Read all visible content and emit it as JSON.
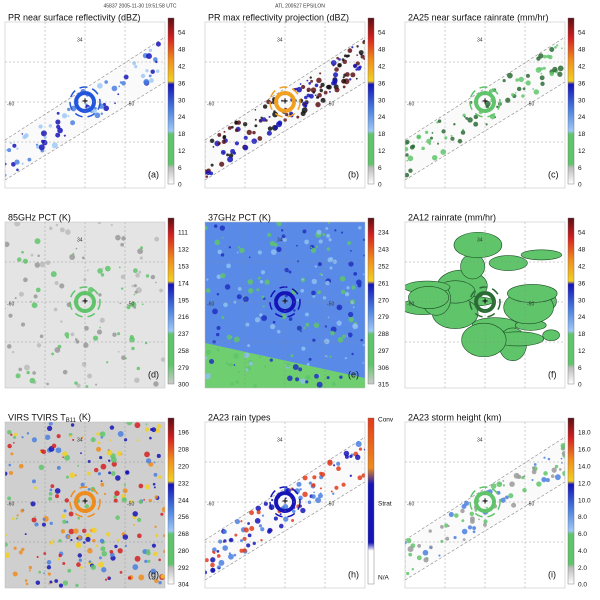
{
  "header": {
    "left": "45837 2005-11-30 19:51:58 UTC",
    "center": "ATL 200527 EPSILON"
  },
  "map_labels": [
    "34",
    "-60",
    "-50"
  ],
  "panels": [
    {
      "title": "PR near surface reflectivity (dBZ)",
      "letter": "(a)",
      "colorbar": [
        "54",
        "48",
        "42",
        "36",
        "30",
        "24",
        "18",
        "12",
        "6",
        "0"
      ]
    },
    {
      "title": "PR max reflectivity projection (dBZ)",
      "letter": "(b)",
      "colorbar": [
        "54",
        "48",
        "42",
        "36",
        "30",
        "24",
        "18",
        "12",
        "6",
        "0"
      ]
    },
    {
      "title": "2A25 near surface rainrate (mm/hr)",
      "letter": "(c)",
      "colorbar": [
        "54",
        "48",
        "42",
        "36",
        "30",
        "24",
        "18",
        "12",
        "6",
        "0"
      ]
    },
    {
      "title": "85GHz PCT (K)",
      "letter": "(d)",
      "colorbar": [
        "111",
        "132",
        "153",
        "174",
        "195",
        "216",
        "237",
        "258",
        "279",
        "300"
      ]
    },
    {
      "title": "37GHz PCT (K)",
      "letter": "(e)",
      "colorbar": [
        "234",
        "243",
        "252",
        "261",
        "270",
        "279",
        "288",
        "297",
        "306",
        "315"
      ]
    },
    {
      "title": "2A12 rainrate (mm/hr)",
      "letter": "(f)",
      "colorbar": [
        "54",
        "48",
        "42",
        "36",
        "30",
        "24",
        "18",
        "12",
        "6",
        "0"
      ]
    },
    {
      "title": "VIRS T",
      "title_sub": "B11",
      "title_suffix": "(K)",
      "letter": "(g)",
      "colorbar": [
        "196",
        "208",
        "220",
        "232",
        "244",
        "256",
        "268",
        "280",
        "292",
        "304"
      ]
    },
    {
      "title": "2A23 rain types",
      "letter": "(h)",
      "colorbar": [
        "Conv",
        "Strat",
        "N/A"
      ]
    },
    {
      "title": "2A23 storm height (km)",
      "letter": "(i)",
      "colorbar": [
        "18.0",
        "16.0",
        "14.0",
        "12.0",
        "10.0",
        "8.0",
        "6.0",
        "4.0",
        "2.0",
        "0.0"
      ]
    }
  ]
}
